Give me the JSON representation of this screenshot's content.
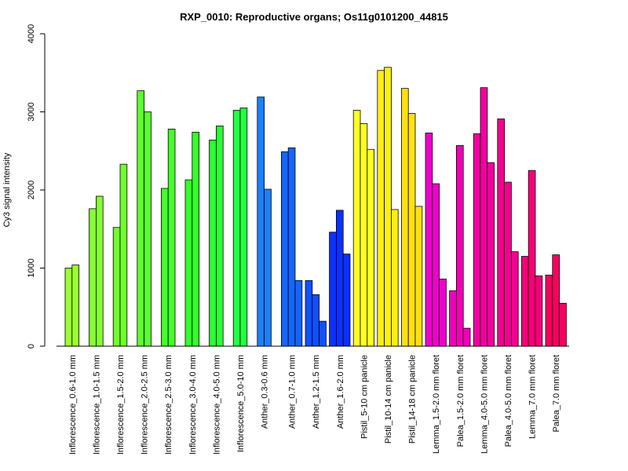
{
  "chart_data": {
    "type": "bar",
    "title": "RXP_0010: Reproductive organs; Os11g0101200_44815",
    "ylabel": "Cy3 signal intensity",
    "ylim": [
      0,
      4000
    ],
    "yticks": [
      0,
      1000,
      2000,
      3000,
      4000
    ],
    "groups": [
      {
        "label": "Inflorescence_0.6-1.0 mm",
        "color": "#99ff33",
        "values": [
          1000,
          1040
        ]
      },
      {
        "label": "Inflorescence_1.0-1.5 mm",
        "color": "#85ff33",
        "values": [
          1760,
          1920
        ]
      },
      {
        "label": "Inflorescence_1.5-2.0 mm",
        "color": "#70ff2e",
        "values": [
          1520,
          2330
        ]
      },
      {
        "label": "Inflorescence_2.0-2.5 mm",
        "color": "#5cff2e",
        "values": [
          3270,
          3000
        ]
      },
      {
        "label": "Inflorescence_2.5-3.0 mm",
        "color": "#47ff29",
        "values": [
          2020,
          2780
        ]
      },
      {
        "label": "Inflorescence_3.0-4.0 mm",
        "color": "#33ff29",
        "values": [
          2130,
          2740
        ]
      },
      {
        "label": "Inflorescence_4.0-5.0 mm",
        "color": "#29ff33",
        "values": [
          2640,
          2820
        ]
      },
      {
        "label": "Inflorescence_5.0-10 mm",
        "color": "#22ff44",
        "values": [
          3020,
          3050
        ]
      },
      {
        "label": "Anther_0.3-0.6 mm",
        "color": "#1a80ff",
        "values": [
          3190,
          2010
        ]
      },
      {
        "label": "Anther_0.7-1.0 mm",
        "color": "#1566ff",
        "values": [
          2490,
          2540,
          840
        ]
      },
      {
        "label": "Anther_1.2-1.5 mm",
        "color": "#1150ff",
        "values": [
          840,
          660,
          320
        ]
      },
      {
        "label": "Anther_1.6-2.0 mm",
        "color": "#0d30ff",
        "values": [
          1460,
          1740,
          1180
        ]
      },
      {
        "label": "Pistil_5-10 cm panicle",
        "color": "#ffff22",
        "values": [
          3020,
          2850,
          2520
        ]
      },
      {
        "label": "Pistil_10-14 cm panicle",
        "color": "#ffee11",
        "values": [
          3530,
          3570,
          1750
        ]
      },
      {
        "label": "Pistil_14-18 cm panicle",
        "color": "#ffe011",
        "values": [
          3300,
          2980,
          1790
        ]
      },
      {
        "label": "Lemma_1.5-2.0 mm floret",
        "color": "#ee00cc",
        "values": [
          2730,
          2080,
          860
        ]
      },
      {
        "label": "Palea_1.5-2.0 mm floret",
        "color": "#f000b8",
        "values": [
          710,
          2570,
          230
        ]
      },
      {
        "label": "Lemma_4.0-5.0 mm floret",
        "color": "#f200a0",
        "values": [
          2720,
          3310,
          2350
        ]
      },
      {
        "label": "Palea_4.0-5.0 mm floret",
        "color": "#f40090",
        "values": [
          2910,
          2100,
          1210
        ]
      },
      {
        "label": "Lemma_7.0 mm floret",
        "color": "#f60078",
        "values": [
          1150,
          2250,
          900
        ]
      },
      {
        "label": "Palea_7.0 mm floret",
        "color": "#f80060",
        "values": [
          910,
          1170,
          550
        ]
      }
    ]
  }
}
